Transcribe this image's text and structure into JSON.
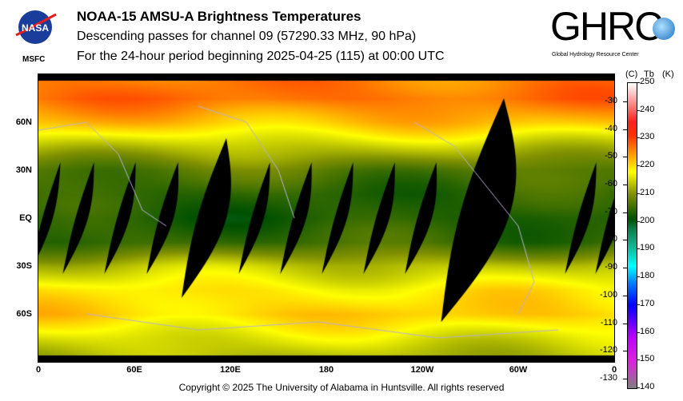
{
  "header": {
    "title": "NOAA-15 AMSU-A Brightness Temperatures",
    "subtitle": "Descending passes for channel 09 (57290.33 MHz, 90 hPa)",
    "period": "For the 24-hour period beginning 2025-04-25 (115) at 00:00 UTC"
  },
  "logos": {
    "nasa": {
      "text": "NASA",
      "sub": "MSFC"
    },
    "ghrc": {
      "text": "GHRC",
      "sub": "Global Hydrology Resource Center"
    }
  },
  "map": {
    "lat_labels": [
      "60N",
      "30N",
      "EQ",
      "30S",
      "60S"
    ],
    "lon_labels": [
      "0",
      "60E",
      "120E",
      "180",
      "120W",
      "60W",
      "0"
    ],
    "zonal_tb_k": [
      [
        90,
        226
      ],
      [
        75,
        227
      ],
      [
        60,
        222
      ],
      [
        45,
        214
      ],
      [
        30,
        207
      ],
      [
        15,
        204
      ],
      [
        0,
        203
      ],
      [
        -15,
        205
      ],
      [
        -30,
        214
      ],
      [
        -45,
        219
      ],
      [
        -60,
        221
      ],
      [
        -75,
        216
      ],
      [
        -90,
        212
      ]
    ],
    "nodata_color": "#000000",
    "coast_color": "#b8b0d8"
  },
  "colorbar": {
    "header_c": "(C)",
    "header_tb": "Tb",
    "header_k": "(K)",
    "k_labels": [
      "250",
      "240",
      "230",
      "220",
      "210",
      "200",
      "190",
      "180",
      "170",
      "160",
      "150",
      "140"
    ],
    "c_labels": [
      "-30",
      "-40",
      "-50",
      "-60",
      "-70",
      "-80",
      "-90",
      "-100",
      "-110",
      "-120",
      "-130"
    ],
    "range_k": [
      140,
      250
    ],
    "stops": [
      [
        140,
        "#808080"
      ],
      [
        150,
        "#e020e0"
      ],
      [
        158,
        "#c000ff"
      ],
      [
        165,
        "#5000ff"
      ],
      [
        170,
        "#0000ff"
      ],
      [
        178,
        "#0080ff"
      ],
      [
        184,
        "#00ffff"
      ],
      [
        190,
        "#10c0a0"
      ],
      [
        197,
        "#108050"
      ],
      [
        201,
        "#005000"
      ],
      [
        210,
        "#809000"
      ],
      [
        218,
        "#ffff00"
      ],
      [
        224,
        "#ffa000"
      ],
      [
        231,
        "#ff3000"
      ],
      [
        236,
        "#ff2020"
      ],
      [
        243,
        "#ff9090"
      ],
      [
        250,
        "#ffffff"
      ]
    ]
  },
  "footer": {
    "copyright": "Copyright © 2025 The University of Alabama in Huntsville.  All rights reserved"
  }
}
